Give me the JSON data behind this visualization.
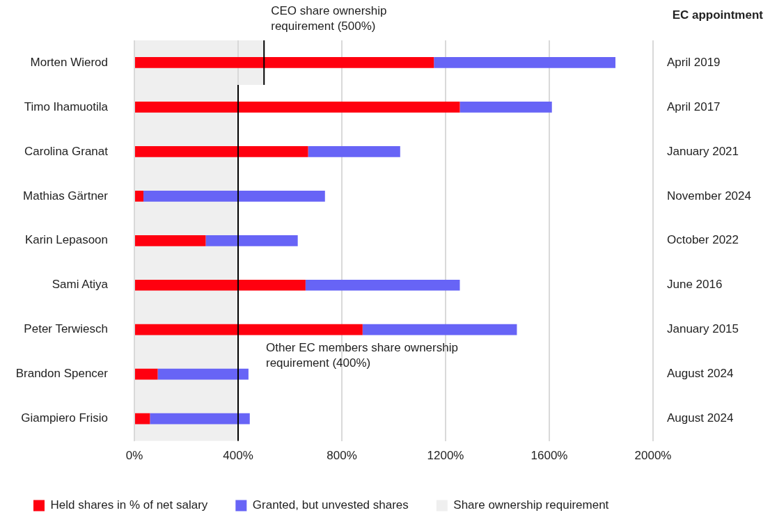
{
  "chart_data": {
    "type": "bar",
    "orientation": "horizontal",
    "stacked": true,
    "categories": [
      "Morten Wierod",
      "Timo Ihamuotila",
      "Carolina Granat",
      "Mathias Gärtner",
      "Karin Lepasoon",
      "Sami Atiya",
      "Peter Terwiesch",
      "Brandon Spencer",
      "Giampiero Frisio"
    ],
    "series": [
      {
        "name": "Held shares in % of net salary",
        "color": "#ff000f",
        "values": [
          1155,
          1255,
          670,
          35,
          275,
          660,
          880,
          90,
          60
        ]
      },
      {
        "name": "Granted, but unvested shares",
        "color": "#6764f6",
        "values": [
          700,
          355,
          355,
          700,
          355,
          595,
          595,
          350,
          385
        ]
      }
    ],
    "xlim": [
      0,
      2000
    ],
    "xticks": [
      {
        "value": 0,
        "label": "0%"
      },
      {
        "value": 400,
        "label": "400%"
      },
      {
        "value": 800,
        "label": "800%"
      },
      {
        "value": 1200,
        "label": "1200%"
      },
      {
        "value": 1600,
        "label": "1600%"
      },
      {
        "value": 2000,
        "label": "2000%"
      }
    ],
    "grid": "x",
    "legend": "bottom left",
    "y2label": "EC appointment",
    "bands": [
      {
        "axis": "x",
        "from": 0,
        "to": 500,
        "color": "#efefef"
      },
      {
        "axis": "x",
        "from": 0,
        "to": 400,
        "label": "Share ownership requirement",
        "color": "#efefef"
      }
    ],
    "ref_lines": [
      {
        "axis": "x",
        "value": 500,
        "label": "CEO share ownership requirement (500%)",
        "color": "#000000"
      },
      {
        "axis": "x",
        "value": 400,
        "label": "Other EC members share ownership requirement (400%)",
        "color": "#000000"
      }
    ],
    "annotations": [
      "April 2019",
      "April 2017",
      "January 2021",
      "November 2024",
      "October 2022",
      "June 2016",
      "January 2015",
      "August 2024",
      "August 2024"
    ]
  }
}
